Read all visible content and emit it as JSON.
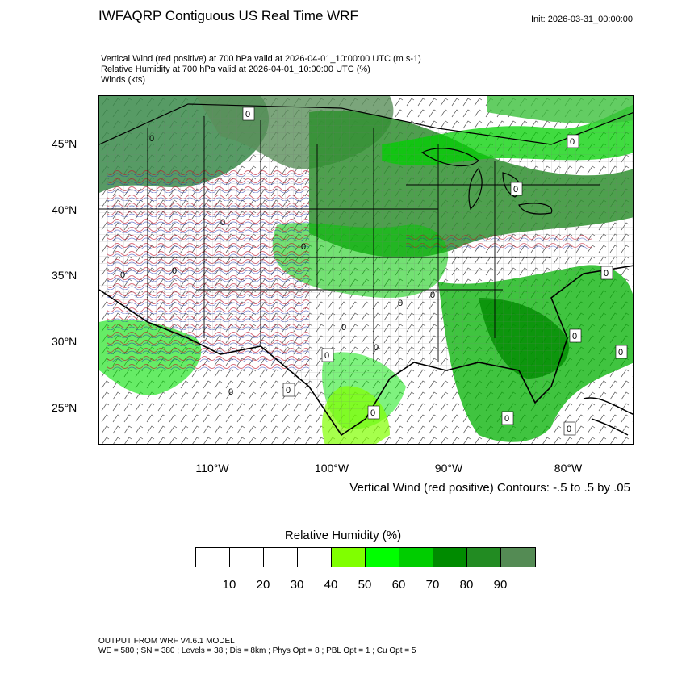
{
  "header": {
    "title": "IWFAQRP Contiguous US Real Time WRF",
    "init": "Init: 2026-03-31_00:00:00",
    "lines": [
      "Vertical Wind (red positive) at 700 hPa valid at 2026-04-01_10:00:00 UTC   (m s-1)",
      "Relative Humidity at 700 hPa valid at 2026-04-01_10:00:00 UTC   (%)",
      "Winds   (kts)"
    ]
  },
  "axes": {
    "lat_labels": [
      "45°N",
      "40°N",
      "35°N",
      "30°N",
      "25°N"
    ],
    "lon_labels": [
      "110°W",
      "100°W",
      "90°W",
      "80°W"
    ]
  },
  "contour_note": "Vertical Wind (red positive) Contours: -.5 to .5 by .05",
  "contour_label": "0",
  "colorbar": {
    "title": "Relative Humidity  (%)",
    "colors": [
      "#ffffff",
      "#ffffff",
      "#ffffff",
      "#ffffff",
      "#80ff00",
      "#00ff00",
      "#00cd00",
      "#008b00",
      "#228b22",
      "#548b54"
    ],
    "ticks": [
      "10",
      "20",
      "30",
      "40",
      "50",
      "60",
      "70",
      "80",
      "90"
    ]
  },
  "footer": {
    "line1": "OUTPUT FROM WRF V4.6.1 MODEL",
    "line2": "WE = 580 ; SN = 380 ; Levels = 38 ; Dis = 8km ; Phys Opt = 8 ; PBL Opt = 1 ; Cu Opt = 5"
  }
}
